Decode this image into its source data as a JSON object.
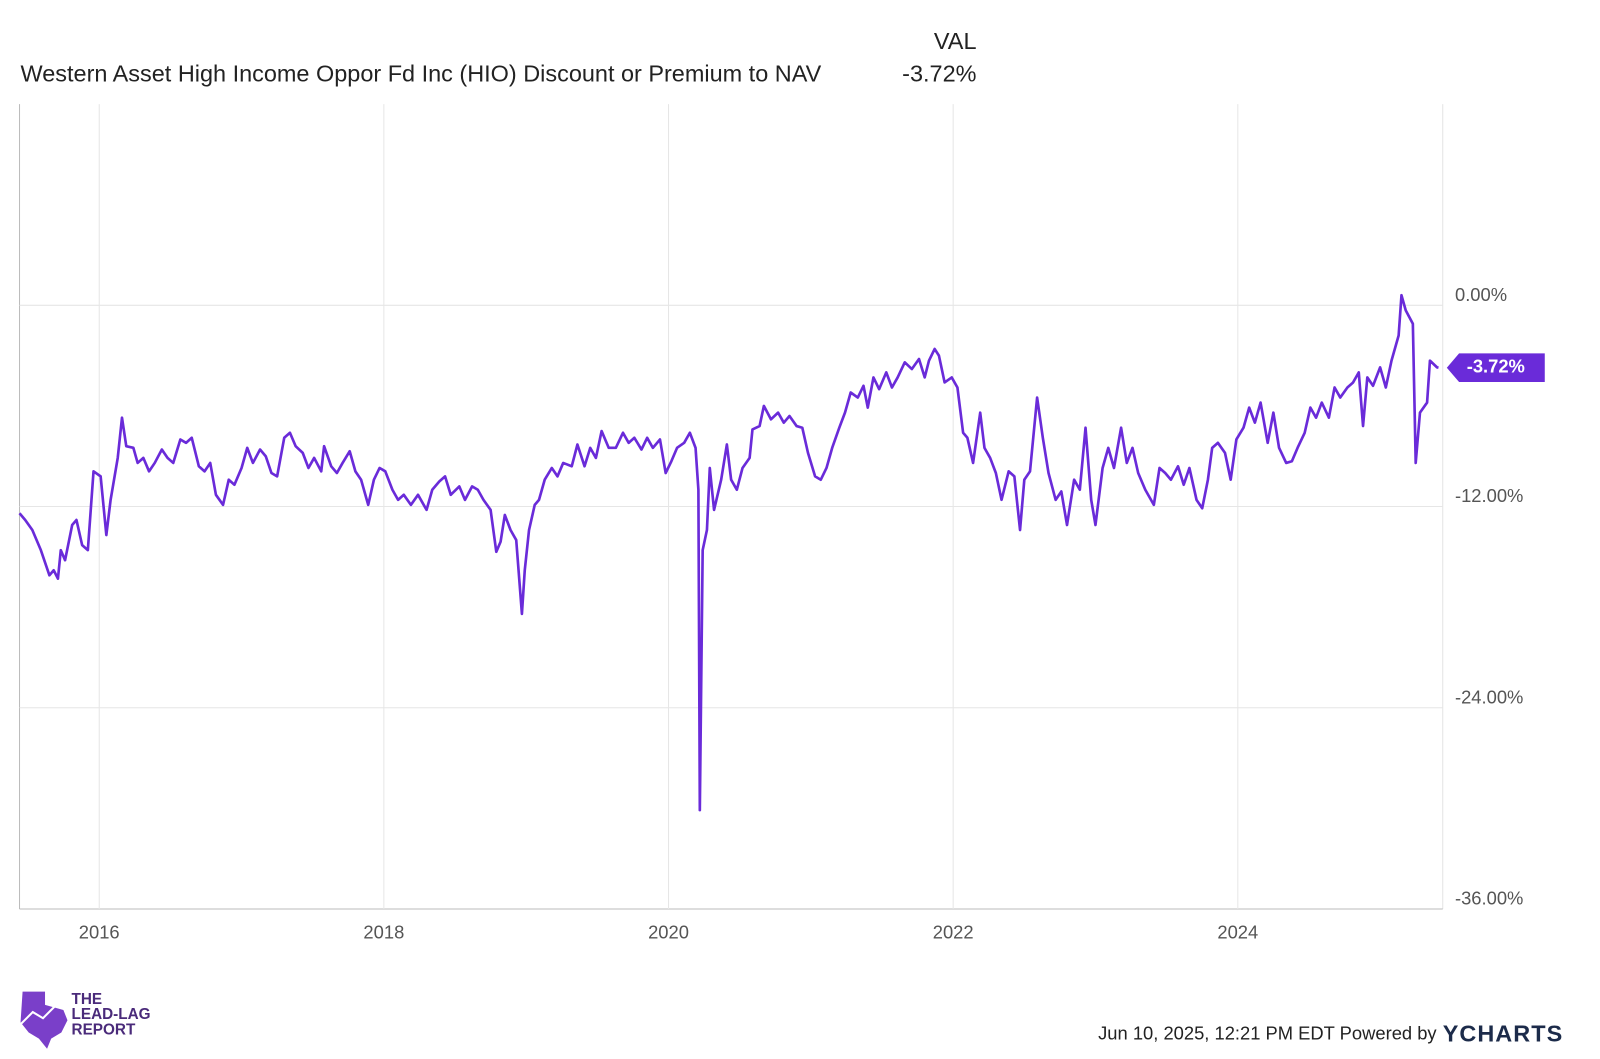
{
  "chart_data": {
    "type": "line",
    "value_header": "VAL",
    "xlim": [
      2015.44,
      2025.44
    ],
    "xticks": [
      2016,
      2018,
      2020,
      2022,
      2024
    ],
    "ylim": [
      -36,
      12
    ],
    "yticks": [
      {
        "value": 0,
        "label": "0.00%"
      },
      {
        "value": -12,
        "label": "-12.00%"
      },
      {
        "value": -24,
        "label": "-24.00%"
      },
      {
        "value": -36,
        "label": "-36.00%"
      }
    ],
    "grid": true,
    "x": [
      2015.44,
      2015.48,
      2015.53,
      2015.59,
      2015.65,
      2015.68,
      2015.71,
      2015.73,
      2015.76,
      2015.81,
      2015.84,
      2015.88,
      2015.92,
      2015.96,
      2016.01,
      2016.05,
      2016.08,
      2016.13,
      2016.16,
      2016.19,
      2016.24,
      2016.27,
      2016.31,
      2016.35,
      2016.39,
      2016.44,
      2016.48,
      2016.52,
      2016.57,
      2016.61,
      2016.65,
      2016.7,
      2016.74,
      2016.78,
      2016.82,
      2016.87,
      2016.91,
      2016.95,
      2017.0,
      2017.04,
      2017.08,
      2017.13,
      2017.17,
      2017.21,
      2017.25,
      2017.3,
      2017.34,
      2017.38,
      2017.43,
      2017.47,
      2017.51,
      2017.56,
      2017.58,
      2017.63,
      2017.67,
      2017.71,
      2017.76,
      2017.8,
      2017.84,
      2017.89,
      2017.93,
      2017.97,
      2018.01,
      2018.06,
      2018.1,
      2018.14,
      2018.19,
      2018.24,
      2018.3,
      2018.34,
      2018.39,
      2018.43,
      2018.47,
      2018.53,
      2018.57,
      2018.62,
      2018.66,
      2018.7,
      2018.75,
      2018.79,
      2018.82,
      2018.85,
      2018.89,
      2018.93,
      2018.97,
      2018.99,
      2019.02,
      2019.06,
      2019.09,
      2019.13,
      2019.18,
      2019.22,
      2019.26,
      2019.32,
      2019.36,
      2019.41,
      2019.45,
      2019.49,
      2019.53,
      2019.58,
      2019.63,
      2019.68,
      2019.72,
      2019.76,
      2019.81,
      2019.85,
      2019.89,
      2019.94,
      2019.98,
      2020.02,
      2020.06,
      2020.11,
      2020.15,
      2020.19,
      2020.21,
      2020.22,
      2020.24,
      2020.27,
      2020.29,
      2020.32,
      2020.37,
      2020.41,
      2020.44,
      2020.48,
      2020.52,
      2020.57,
      2020.59,
      2020.64,
      2020.67,
      2020.72,
      2020.77,
      2020.81,
      2020.85,
      2020.9,
      2020.94,
      2020.98,
      2021.03,
      2021.07,
      2021.11,
      2021.15,
      2021.2,
      2021.24,
      2021.28,
      2021.33,
      2021.37,
      2021.4,
      2021.44,
      2021.48,
      2021.53,
      2021.57,
      2021.61,
      2021.66,
      2021.71,
      2021.76,
      2021.8,
      2021.83,
      2021.87,
      2021.9,
      2021.94,
      2021.99,
      2022.03,
      2022.07,
      2022.1,
      2022.14,
      2022.19,
      2022.22,
      2022.26,
      2022.3,
      2022.34,
      2022.39,
      2022.43,
      2022.47,
      2022.5,
      2022.54,
      2022.59,
      2022.63,
      2022.67,
      2022.72,
      2022.76,
      2022.8,
      2022.85,
      2022.89,
      2022.93,
      2022.97,
      2023.0,
      2023.05,
      2023.09,
      2023.13,
      2023.18,
      2023.22,
      2023.26,
      2023.3,
      2023.35,
      2023.41,
      2023.45,
      2023.49,
      2023.53,
      2023.58,
      2023.62,
      2023.66,
      2023.71,
      2023.75,
      2023.79,
      2023.82,
      2023.86,
      2023.91,
      2023.95,
      2023.99,
      2024.04,
      2024.08,
      2024.12,
      2024.16,
      2024.21,
      2024.25,
      2024.29,
      2024.34,
      2024.38,
      2024.42,
      2024.47,
      2024.51,
      2024.55,
      2024.59,
      2024.64,
      2024.68,
      2024.72,
      2024.77,
      2024.81,
      2024.85,
      2024.88,
      2024.91,
      2024.95,
      2025.0,
      2025.04,
      2025.08,
      2025.13,
      2025.15,
      2025.18,
      2025.23,
      2025.25,
      2025.28,
      2025.33,
      2025.35,
      2025.4,
      2025.41
    ],
    "series": [
      {
        "name": "Western Asset High Income Oppor Fd Inc (HIO) Discount or Premium to NAV",
        "color": "#6a2bd9",
        "last_value_label": "-3.72%",
        "values": [
          -12.4,
          -12.8,
          -13.4,
          -14.6,
          -16.1,
          -15.8,
          -16.3,
          -14.6,
          -15.2,
          -13.1,
          -12.8,
          -14.3,
          -14.6,
          -9.9,
          -10.2,
          -13.7,
          -11.6,
          -9.1,
          -6.7,
          -8.4,
          -8.5,
          -9.4,
          -9.1,
          -9.9,
          -9.4,
          -8.6,
          -9.1,
          -9.4,
          -8.0,
          -8.2,
          -7.9,
          -9.6,
          -9.9,
          -9.4,
          -11.3,
          -11.9,
          -10.4,
          -10.7,
          -9.7,
          -8.5,
          -9.4,
          -8.6,
          -9.0,
          -10.0,
          -10.2,
          -7.9,
          -7.6,
          -8.4,
          -8.8,
          -9.7,
          -9.1,
          -9.9,
          -8.4,
          -9.6,
          -10.0,
          -9.4,
          -8.7,
          -9.9,
          -10.4,
          -11.9,
          -10.4,
          -9.7,
          -9.9,
          -11.0,
          -11.6,
          -11.3,
          -11.9,
          -11.3,
          -12.2,
          -11.0,
          -10.5,
          -10.2,
          -11.3,
          -10.8,
          -11.6,
          -10.8,
          -11.0,
          -11.6,
          -12.2,
          -14.7,
          -14.1,
          -12.5,
          -13.4,
          -14.0,
          -18.4,
          -15.8,
          -13.4,
          -11.9,
          -11.6,
          -10.4,
          -9.7,
          -10.2,
          -9.4,
          -9.6,
          -8.3,
          -9.6,
          -8.5,
          -9.1,
          -7.5,
          -8.5,
          -8.5,
          -7.6,
          -8.2,
          -7.9,
          -8.6,
          -7.9,
          -8.5,
          -8.0,
          -10.0,
          -9.3,
          -8.5,
          -8.2,
          -7.6,
          -8.5,
          -11.0,
          -30.1,
          -14.6,
          -13.4,
          -9.7,
          -12.2,
          -10.4,
          -8.3,
          -10.4,
          -11.0,
          -9.7,
          -9.1,
          -7.4,
          -7.2,
          -6.0,
          -6.8,
          -6.4,
          -7.0,
          -6.6,
          -7.2,
          -7.3,
          -8.8,
          -10.2,
          -10.4,
          -9.7,
          -8.5,
          -7.3,
          -6.4,
          -5.2,
          -5.5,
          -4.8,
          -6.1,
          -4.3,
          -5.0,
          -4.0,
          -4.9,
          -4.3,
          -3.4,
          -3.8,
          -3.2,
          -4.3,
          -3.3,
          -2.6,
          -3.0,
          -4.6,
          -4.3,
          -4.9,
          -7.6,
          -7.9,
          -9.4,
          -6.4,
          -8.5,
          -9.1,
          -10.0,
          -11.6,
          -9.9,
          -10.2,
          -13.4,
          -10.4,
          -9.9,
          -5.5,
          -7.9,
          -10.0,
          -11.6,
          -11.1,
          -13.1,
          -10.4,
          -11.0,
          -7.3,
          -11.6,
          -13.1,
          -9.7,
          -8.5,
          -9.7,
          -7.3,
          -9.4,
          -8.5,
          -10.0,
          -11.0,
          -11.9,
          -9.7,
          -10.0,
          -10.4,
          -9.6,
          -10.7,
          -9.7,
          -11.6,
          -12.1,
          -10.4,
          -8.5,
          -8.2,
          -8.8,
          -10.4,
          -8.0,
          -7.3,
          -6.1,
          -7.0,
          -5.8,
          -8.2,
          -6.4,
          -8.5,
          -9.4,
          -9.3,
          -8.5,
          -7.6,
          -6.1,
          -6.7,
          -5.8,
          -6.7,
          -4.9,
          -5.5,
          -4.9,
          -4.6,
          -4.0,
          -7.2,
          -4.3,
          -4.8,
          -3.7,
          -4.9,
          -3.3,
          -1.8,
          0.6,
          -0.3,
          -1.1,
          -9.4,
          -6.4,
          -5.8,
          -3.3,
          -3.7,
          -3.72
        ]
      }
    ],
    "source": "Jun 10, 2025, 12:21 PM EDT Powered by",
    "brand": "YCHARTS",
    "watermark": [
      "THE",
      "LEAD-LAG",
      "REPORT"
    ]
  }
}
